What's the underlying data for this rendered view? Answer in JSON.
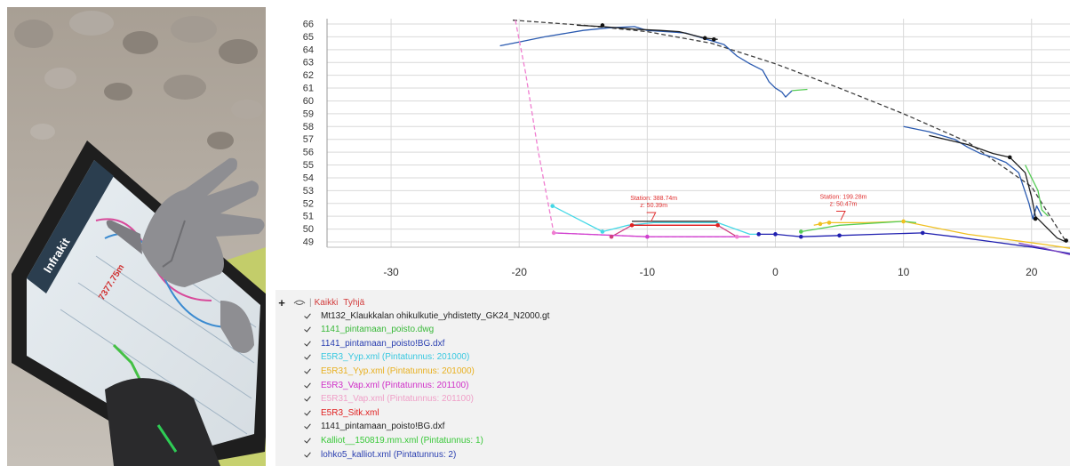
{
  "chart_data": {
    "type": "line",
    "title": "",
    "xlabel": "",
    "ylabel": "",
    "xlim": [
      -35,
      23
    ],
    "ylim": [
      49,
      66
    ],
    "x_ticks": [
      -30,
      -20,
      -10,
      0,
      10,
      20
    ],
    "x_tick_labels": [
      "-30",
      "-20",
      "-10",
      "0",
      "10",
      "20"
    ],
    "y_ticks": [
      49,
      50,
      51,
      52,
      53,
      54,
      55,
      56,
      57,
      58,
      59,
      60,
      61,
      62,
      63,
      64,
      65,
      66
    ],
    "y_tick_labels": [
      "49",
      "50",
      "51",
      "52",
      "53",
      "54",
      "55",
      "56",
      "57",
      "58",
      "59",
      "60",
      "61",
      "62",
      "63",
      "64",
      "65",
      "66"
    ],
    "grid": true,
    "series": [
      {
        "color": "#404040",
        "dashed": true,
        "points": [
          [
            -20.5,
            66.3
          ],
          [
            -15,
            65.9
          ],
          [
            -10,
            65.4
          ],
          [
            -5,
            64.5
          ],
          [
            0,
            62.9
          ],
          [
            5,
            61.0
          ],
          [
            10,
            59.0
          ],
          [
            15,
            56.8
          ],
          [
            20,
            53.3
          ],
          [
            22.7,
            49.0
          ]
        ]
      },
      {
        "color": "#2a5ab0",
        "points": [
          [
            -21.5,
            64.3
          ],
          [
            -20,
            64.6
          ],
          [
            -18,
            65.0
          ],
          [
            -15,
            65.5
          ],
          [
            -13,
            65.7
          ],
          [
            -11,
            65.8
          ],
          [
            -10,
            65.5
          ],
          [
            -8.5,
            65.4
          ],
          [
            -7,
            65.3
          ],
          [
            -5,
            64.7
          ],
          [
            -4,
            64.4
          ],
          [
            -3,
            63.5
          ],
          [
            -2,
            62.9
          ],
          [
            -1,
            62.4
          ],
          [
            -0.5,
            61.5
          ],
          [
            0,
            61.0
          ],
          [
            0.5,
            60.7
          ],
          [
            0.8,
            60.3
          ],
          [
            1.3,
            60.8
          ]
        ]
      },
      {
        "color": "#55cc55",
        "points": [
          [
            1.3,
            60.8
          ],
          [
            2.5,
            60.9
          ]
        ]
      },
      {
        "color": "#2a5ab0",
        "points": [
          [
            10,
            58.0
          ],
          [
            12,
            57.6
          ],
          [
            14,
            57.0
          ],
          [
            15,
            56.4
          ],
          [
            16,
            55.9
          ],
          [
            17,
            55.6
          ],
          [
            18,
            55.2
          ],
          [
            19,
            54.4
          ],
          [
            19.8,
            52.0
          ],
          [
            20.1,
            50.8
          ],
          [
            20.4,
            51.8
          ],
          [
            20.8,
            51.0
          ]
        ]
      },
      {
        "color": "#202020",
        "points": [
          [
            -15.5,
            65.9
          ],
          [
            -13.5,
            65.8
          ],
          [
            -11,
            65.6
          ],
          [
            -9,
            65.5
          ],
          [
            -7.5,
            65.4
          ],
          [
            -5.5,
            64.9
          ],
          [
            -4.5,
            64.8
          ]
        ]
      },
      {
        "color": "#202020",
        "points": [
          [
            12,
            57.3
          ],
          [
            15,
            56.6
          ],
          [
            17,
            55.9
          ],
          [
            18.3,
            55.6
          ],
          [
            19.5,
            54.4
          ],
          [
            20,
            52.5
          ],
          [
            20.3,
            51.0
          ],
          [
            21,
            50.3
          ],
          [
            22,
            49.3
          ],
          [
            22.7,
            49.0
          ]
        ]
      },
      {
        "color": "#55cc55",
        "points": [
          [
            19.5,
            55.0
          ],
          [
            20.5,
            53.0
          ],
          [
            20.8,
            51.5
          ],
          [
            21.3,
            51.0
          ]
        ]
      },
      {
        "color": "#f07ed0",
        "dashed": true,
        "points": [
          [
            -20.3,
            66.3
          ],
          [
            -19.5,
            62.2
          ],
          [
            -18.5,
            56.0
          ],
          [
            -17.3,
            49.7
          ],
          [
            -10,
            49.4
          ],
          [
            -2,
            49.4
          ]
        ]
      },
      {
        "color": "#44d8e6",
        "points": [
          [
            -17.4,
            51.8
          ],
          [
            -13.5,
            49.8
          ],
          [
            -11.5,
            50.3
          ],
          [
            -9.5,
            50.5
          ],
          [
            -4.5,
            50.5
          ],
          [
            -2,
            49.6
          ],
          [
            -1.3,
            49.6
          ]
        ]
      },
      {
        "color": "#d04080",
        "points": [
          [
            -12.8,
            49.4
          ],
          [
            -11.2,
            50.3
          ],
          [
            -4.5,
            50.3
          ],
          [
            -3,
            49.4
          ]
        ]
      },
      {
        "color": "#e02020",
        "points": [
          [
            -11.2,
            50.3
          ],
          [
            -4.5,
            50.3
          ]
        ]
      },
      {
        "color": "#222222",
        "points": [
          [
            -11.2,
            50.6
          ],
          [
            -4.5,
            50.6
          ]
        ]
      },
      {
        "color": "#d040d0",
        "points": [
          [
            -17.3,
            49.7
          ],
          [
            -10,
            49.4
          ],
          [
            -2,
            49.4
          ]
        ]
      },
      {
        "color": "#2020b0",
        "points": [
          [
            -1.3,
            49.6
          ],
          [
            0,
            49.6
          ],
          [
            2,
            49.4
          ],
          [
            5,
            49.5
          ],
          [
            8,
            49.6
          ],
          [
            11.5,
            49.7
          ],
          [
            14,
            49.4
          ],
          [
            17,
            49.0
          ],
          [
            20,
            48.6
          ],
          [
            23,
            48.1
          ]
        ]
      },
      {
        "color": "#f0c020",
        "points": [
          [
            3,
            50.3
          ],
          [
            4,
            50.5
          ],
          [
            7,
            50.5
          ],
          [
            10,
            50.6
          ],
          [
            12,
            50.2
          ],
          [
            15,
            49.6
          ],
          [
            18,
            49.2
          ],
          [
            21,
            48.8
          ],
          [
            23,
            48.5
          ]
        ]
      },
      {
        "color": "#55cc55",
        "points": [
          [
            2,
            49.8
          ],
          [
            5,
            50.3
          ],
          [
            10,
            50.6
          ],
          [
            11,
            50.5
          ]
        ]
      },
      {
        "color": "#7a3fc0",
        "points": [
          [
            19,
            48.9
          ],
          [
            21,
            48.5
          ],
          [
            23,
            48.0
          ]
        ]
      }
    ],
    "points": [
      {
        "x": -13.5,
        "y": 65.9,
        "color": "#111111"
      },
      {
        "x": -5.5,
        "y": 64.9,
        "color": "#111111"
      },
      {
        "x": -4.8,
        "y": 64.8,
        "color": "#111111"
      },
      {
        "x": 18.3,
        "y": 55.6,
        "color": "#111111"
      },
      {
        "x": 20.3,
        "y": 50.8,
        "color": "#111111"
      },
      {
        "x": 22.7,
        "y": 49.1,
        "color": "#111111"
      },
      {
        "x": -17.4,
        "y": 51.8,
        "color": "#44d8e6"
      },
      {
        "x": -13.5,
        "y": 49.8,
        "color": "#44d8e6"
      },
      {
        "x": -17.3,
        "y": 49.7,
        "color": "#f07ed0"
      },
      {
        "x": -12.8,
        "y": 49.4,
        "color": "#d04080"
      },
      {
        "x": -11.2,
        "y": 50.3,
        "color": "#e02020"
      },
      {
        "x": -4.5,
        "y": 50.3,
        "color": "#e02020"
      },
      {
        "x": -3,
        "y": 49.4,
        "color": "#f07ed0"
      },
      {
        "x": -10,
        "y": 49.4,
        "color": "#d040d0"
      },
      {
        "x": -1.3,
        "y": 49.6,
        "color": "#2020b0"
      },
      {
        "x": 0,
        "y": 49.6,
        "color": "#2020b0"
      },
      {
        "x": 2,
        "y": 49.4,
        "color": "#2020b0"
      },
      {
        "x": 5,
        "y": 49.5,
        "color": "#2020b0"
      },
      {
        "x": 11.5,
        "y": 49.7,
        "color": "#2020b0"
      },
      {
        "x": 3.5,
        "y": 50.4,
        "color": "#f0c020"
      },
      {
        "x": 4.2,
        "y": 50.5,
        "color": "#f0c020"
      },
      {
        "x": 10,
        "y": 50.6,
        "color": "#f0c020"
      },
      {
        "x": 2,
        "y": 49.8,
        "color": "#55cc55"
      }
    ],
    "annotations": [
      {
        "station": "Station: 388.74m",
        "z": "z: 50.39m",
        "x": -9.7,
        "y": 50.6,
        "color": "#e03030"
      },
      {
        "station": "Station: 199.28m",
        "z": "z: 50.47m",
        "x": 5.1,
        "y": 50.7,
        "color": "#e03030"
      }
    ]
  },
  "legend": {
    "expand": "+",
    "all_label": "Kaikki",
    "none_label": "Tyhjä",
    "separator": "|",
    "layers": [
      {
        "label": "Mt132_Klaukkalan ohikulkutie_yhdistetty_GK24_N2000.gt",
        "color": "#222222"
      },
      {
        "label": "1141_pintamaan_poisto.dwg",
        "color": "#38b838"
      },
      {
        "label": "1141_pintamaan_poisto!BG.dxf",
        "color": "#2a3fb0"
      },
      {
        "label": "E5R3_Yyp.xml (Pintatunnus: 201000)",
        "color": "#38c8e0"
      },
      {
        "label": "E5R31_Yyp.xml (Pintatunnus: 201000)",
        "color": "#e8b020"
      },
      {
        "label": "E5R3_Vap.xml (Pintatunnus: 201100)",
        "color": "#d030c8"
      },
      {
        "label": "E5R31_Vap.xml (Pintatunnus: 201100)",
        "color": "#f0a0c8"
      },
      {
        "label": "E5R3_Sitk.xml",
        "color": "#e02020"
      },
      {
        "label": "1141_pintamaan_poisto!BG.dxf",
        "color": "#222222"
      },
      {
        "label": "Kalliot__150819.mm.xml (Pintatunnus: 1)",
        "color": "#38c838"
      },
      {
        "label": "lohko5_kalliot.xml (Pintatunnus: 2)",
        "color": "#2a3fb0"
      }
    ]
  },
  "photo": {
    "tablet_brand": "Infrakit",
    "tablet_text": "7377.75m"
  }
}
